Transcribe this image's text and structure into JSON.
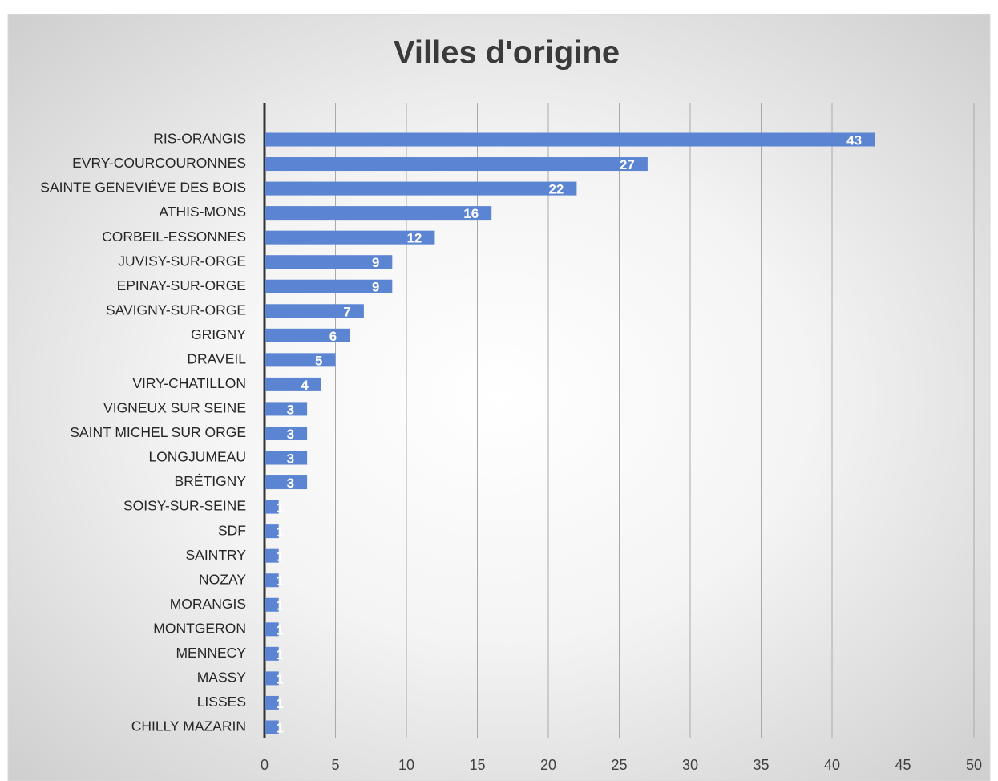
{
  "chart_data": {
    "type": "hbar",
    "title": "Villes d'origine",
    "categories": [
      "RIS-ORANGIS",
      "EVRY-COURCOURONNES",
      "SAINTE GENEVIÈVE DES BOIS",
      "ATHIS-MONS",
      "CORBEIL-ESSONNES",
      "JUVISY-SUR-ORGE",
      "EPINAY-SUR-ORGE",
      "SAVIGNY-SUR-ORGE",
      "GRIGNY",
      "DRAVEIL",
      "VIRY-CHATILLON",
      "VIGNEUX SUR SEINE",
      "SAINT MICHEL SUR ORGE",
      "LONGJUMEAU",
      "BRÉTIGNY",
      "SOISY-SUR-SEINE",
      "SDF",
      "SAINTRY",
      "NOZAY",
      "MORANGIS",
      "MONTGERON",
      "MENNECY",
      "MASSY",
      "LISSES",
      "CHILLY MAZARIN"
    ],
    "values": [
      43,
      27,
      22,
      16,
      12,
      9,
      9,
      7,
      6,
      5,
      4,
      3,
      3,
      3,
      3,
      1,
      1,
      1,
      1,
      1,
      1,
      1,
      1,
      1,
      1
    ],
    "color": "#5b84d2",
    "xlim": [
      0,
      50
    ],
    "xticks": [
      0,
      5,
      10,
      15,
      20,
      25,
      30,
      35,
      40,
      45,
      50
    ],
    "grid": true
  }
}
